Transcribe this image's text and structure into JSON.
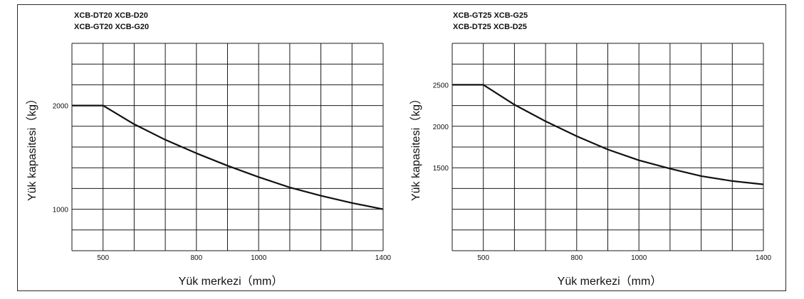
{
  "colors": {
    "grid": "#1a1a1a",
    "curve": "#111111",
    "frame": "#2a2a2a"
  },
  "chart_data": [
    {
      "type": "line",
      "models": [
        "XCB-DT20 XCB-D20",
        "XCB-GT20  XCB-G20"
      ],
      "xlabel": "Yük merkezi（mm）",
      "ylabel": "Yük kapasitesi（kg）",
      "xlim": [
        400,
        1400
      ],
      "ylim": [
        600,
        2600
      ],
      "x_ticks": [
        500,
        800,
        1000,
        1400
      ],
      "y_ticks": [
        1000,
        2000
      ],
      "grid": true,
      "series": [
        {
          "x": [
            400,
            500,
            600,
            700,
            800,
            900,
            1000,
            1100,
            1200,
            1300,
            1400
          ],
          "values": [
            2000,
            2000,
            1820,
            1670,
            1540,
            1420,
            1310,
            1210,
            1130,
            1060,
            1000
          ]
        }
      ]
    },
    {
      "type": "line",
      "models": [
        "XCB-GT25  XCB-G25",
        "XCB-DT25  XCB-D25"
      ],
      "xlabel": "Yük merkezi（mm）",
      "ylabel": "Yük kapasitesi（kg）",
      "xlim": [
        400,
        1400
      ],
      "ylim": [
        500,
        3000
      ],
      "x_ticks": [
        500,
        800,
        1000,
        1400
      ],
      "y_ticks": [
        1500,
        2000,
        2500
      ],
      "grid": true,
      "series": [
        {
          "x": [
            400,
            500,
            600,
            700,
            800,
            900,
            1000,
            1100,
            1200,
            1300,
            1400
          ],
          "values": [
            2500,
            2500,
            2260,
            2060,
            1880,
            1720,
            1590,
            1490,
            1400,
            1340,
            1300
          ]
        }
      ]
    }
  ]
}
